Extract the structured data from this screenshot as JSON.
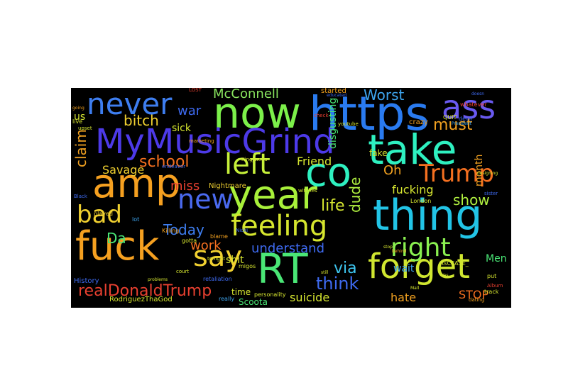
{
  "chart_data": {
    "type": "wordcloud",
    "background": "#000000",
    "colormap": "turbo",
    "words": [
      {
        "text": "https",
        "weight": 100,
        "color": "#2a7bf0"
      },
      {
        "text": "now",
        "weight": 96,
        "color": "#7cf04a"
      },
      {
        "text": "thing",
        "weight": 95,
        "color": "#22c4e6"
      },
      {
        "text": "take",
        "weight": 92,
        "color": "#2ef0c0"
      },
      {
        "text": "fuck",
        "weight": 90,
        "color": "#f5a020"
      },
      {
        "text": "year",
        "weight": 90,
        "color": "#a8f03a"
      },
      {
        "text": "amp",
        "weight": 88,
        "color": "#f5a020"
      },
      {
        "text": "RT",
        "weight": 86,
        "color": "#4ae676"
      },
      {
        "text": "co",
        "weight": 85,
        "color": "#2ef0c0"
      },
      {
        "text": "MyMusicGrind",
        "weight": 80,
        "color": "#4d3ae8"
      },
      {
        "text": "forget",
        "weight": 70,
        "color": "#d0e630"
      },
      {
        "text": "ass",
        "weight": 68,
        "color": "#6a5af0"
      },
      {
        "text": "left",
        "weight": 66,
        "color": "#c6f03a"
      },
      {
        "text": "never",
        "weight": 64,
        "color": "#3e7ef0"
      },
      {
        "text": "feeling",
        "weight": 62,
        "color": "#d6e62e"
      },
      {
        "text": "say",
        "weight": 58,
        "color": "#f0d030"
      },
      {
        "text": "new",
        "weight": 55,
        "color": "#4a6af0"
      },
      {
        "text": "right",
        "weight": 52,
        "color": "#8af050"
      },
      {
        "text": "Trump",
        "weight": 50,
        "color": "#f57020"
      },
      {
        "text": "bad",
        "weight": 48,
        "color": "#f0d030"
      },
      {
        "text": "realDonaldTrump",
        "weight": 40,
        "color": "#e84030"
      },
      {
        "text": "think",
        "weight": 36,
        "color": "#3e6af0"
      },
      {
        "text": "life",
        "weight": 33,
        "color": "#d6e630"
      },
      {
        "text": "understand",
        "weight": 31,
        "color": "#3e6af0"
      },
      {
        "text": "school",
        "weight": 31,
        "color": "#f57020"
      },
      {
        "text": "claim",
        "weight": 30,
        "color": "#f0a020"
      },
      {
        "text": "bitch",
        "weight": 30,
        "color": "#f0d030"
      },
      {
        "text": "must",
        "weight": 29,
        "color": "#f0a020"
      },
      {
        "text": "Worst",
        "weight": 29,
        "color": "#3ea6f0"
      },
      {
        "text": "show",
        "weight": 28,
        "color": "#b0f040"
      },
      {
        "text": "McConnell",
        "weight": 28,
        "color": "#8ae660"
      },
      {
        "text": "Today",
        "weight": 28,
        "color": "#3e7ef0"
      },
      {
        "text": "dude",
        "weight": 27,
        "color": "#b0f040"
      },
      {
        "text": "via",
        "weight": 27,
        "color": "#3ec6f0"
      },
      {
        "text": "war",
        "weight": 27,
        "color": "#3e6af0"
      },
      {
        "text": "Da",
        "weight": 25,
        "color": "#4ae676"
      },
      {
        "text": "fucking",
        "weight": 25,
        "color": "#d6e630"
      },
      {
        "text": "miss",
        "weight": 25,
        "color": "#e84030"
      },
      {
        "text": "work",
        "weight": 24,
        "color": "#f57020"
      },
      {
        "text": "Oh",
        "weight": 24,
        "color": "#f0a020"
      },
      {
        "text": "Savage",
        "weight": 23,
        "color": "#f0d030"
      },
      {
        "text": "Friend",
        "weight": 22,
        "color": "#d6e630"
      },
      {
        "text": "disgusting",
        "weight": 21,
        "color": "#4ae676"
      },
      {
        "text": "suicide",
        "weight": 21,
        "color": "#d6e630"
      },
      {
        "text": "hate",
        "weight": 21,
        "color": "#f0a020"
      },
      {
        "text": "STOP",
        "weight": 20,
        "color": "#f57020"
      },
      {
        "text": "Men",
        "weight": 20,
        "color": "#4ae676"
      },
      {
        "text": "sick",
        "weight": 19,
        "color": "#d6e630"
      },
      {
        "text": "shit",
        "weight": 19,
        "color": "#d6e630"
      },
      {
        "text": "wait",
        "weight": 19,
        "color": "#3ea6f0"
      },
      {
        "text": "time",
        "weight": 18,
        "color": "#d6e630"
      },
      {
        "text": "month",
        "weight": 18,
        "color": "#f0a020"
      },
      {
        "text": "fake",
        "weight": 17,
        "color": "#d6e630"
      },
      {
        "text": "us",
        "weight": 17,
        "color": "#d6e630"
      },
      {
        "text": "Scoota",
        "weight": 16,
        "color": "#4ae676"
      },
      {
        "text": "Nightmare",
        "weight": 15,
        "color": "#f0d030"
      },
      {
        "text": "RodriguezThaGod",
        "weight": 14,
        "color": "#d6e630"
      },
      {
        "text": "started",
        "weight": 13,
        "color": "#f0a020"
      },
      {
        "text": "History",
        "weight": 13,
        "color": "#3e6af0"
      },
      {
        "text": "crazy",
        "weight": 12,
        "color": "#f0a020"
      },
      {
        "text": "London",
        "weight": 12,
        "color": "#d6e630"
      },
      {
        "text": "Killing",
        "weight": 11,
        "color": "#f0a020"
      },
      {
        "text": "played",
        "weight": 11,
        "color": "#f0d030"
      },
      {
        "text": "itsCEASE_",
        "weight": 11,
        "color": "#d6e630"
      },
      {
        "text": "whatever",
        "weight": 11,
        "color": "#e84030"
      },
      {
        "text": "devil",
        "weight": 10,
        "color": "#3e6af0"
      },
      {
        "text": "lot",
        "weight": 10,
        "color": "#3ea6f0"
      },
      {
        "text": "gotta",
        "weight": 10,
        "color": "#d6e630"
      },
      {
        "text": "retaliation",
        "weight": 10,
        "color": "#3e6af0"
      },
      {
        "text": "personality",
        "weight": 10,
        "color": "#d6e630"
      },
      {
        "text": "blame",
        "weight": 10,
        "color": "#f0a020"
      },
      {
        "text": "really",
        "weight": 10,
        "color": "#3ea6f0"
      },
      {
        "text": "migos",
        "weight": 10,
        "color": "#d6e630"
      },
      {
        "text": "President",
        "weight": 9,
        "color": "#3ea6f0"
      },
      {
        "text": "QUIT",
        "weight": 9,
        "color": "#d6e630"
      },
      {
        "text": "marketing",
        "weight": 9,
        "color": "#f0a020"
      },
      {
        "text": "live",
        "weight": 9,
        "color": "#d6e630"
      },
      {
        "text": "Nicki",
        "weight": 9,
        "color": "#3e6af0"
      },
      {
        "text": "tonight",
        "weight": 9,
        "color": "#d6e630"
      },
      {
        "text": "dating",
        "weight": 9,
        "color": "#f0a020"
      },
      {
        "text": "track",
        "weight": 9,
        "color": "#d6e630"
      },
      {
        "text": "put",
        "weight": 9,
        "color": "#d6e630"
      },
      {
        "text": "sister",
        "weight": 8,
        "color": "#3e6af0"
      },
      {
        "text": "Album",
        "weight": 8,
        "color": "#e84030"
      },
      {
        "text": "check",
        "weight": 8,
        "color": "#e84030"
      },
      {
        "text": "LOST",
        "weight": 8,
        "color": "#e84030"
      },
      {
        "text": "youtube",
        "weight": 8,
        "color": "#d6e630"
      },
      {
        "text": "Kingjames",
        "weight": 8,
        "color": "#d6e630"
      },
      {
        "text": "endeavor",
        "weight": 8,
        "color": "#3e6af0"
      },
      {
        "text": "witches",
        "weight": 8,
        "color": "#d6e630"
      },
      {
        "text": "Black",
        "weight": 8,
        "color": "#3e6af0"
      },
      {
        "text": "court",
        "weight": 8,
        "color": "#d6e630"
      },
      {
        "text": "problems",
        "weight": 7,
        "color": "#d6e630"
      },
      {
        "text": "stop",
        "weight": 7,
        "color": "#d6e630"
      },
      {
        "text": "Mall",
        "weight": 7,
        "color": "#d6e630"
      },
      {
        "text": "going",
        "weight": 7,
        "color": "#f0a020"
      },
      {
        "text": "upset",
        "weight": 7,
        "color": "#d6e630"
      },
      {
        "text": "educated",
        "weight": 7,
        "color": "#3e6af0"
      },
      {
        "text": "behind",
        "weight": 7,
        "color": "#f0a020"
      },
      {
        "text": "Yes",
        "weight": 7,
        "color": "#d6e630"
      },
      {
        "text": "designing",
        "weight": 6,
        "color": "#d6e630"
      },
      {
        "text": "doesn",
        "weight": 6,
        "color": "#3e6af0"
      },
      {
        "text": "still",
        "weight": 6,
        "color": "#d6e630"
      }
    ]
  }
}
